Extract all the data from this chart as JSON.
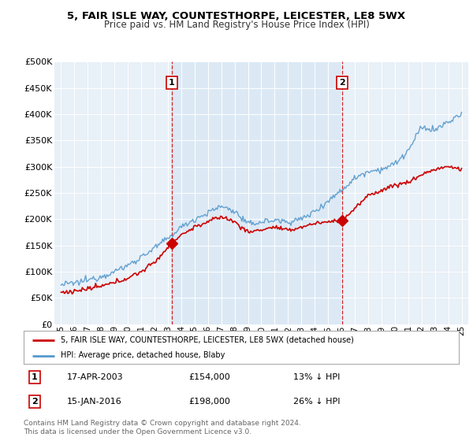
{
  "title": "5, FAIR ISLE WAY, COUNTESTHORPE, LEICESTER, LE8 5WX",
  "subtitle": "Price paid vs. HM Land Registry's House Price Index (HPI)",
  "ylabel_ticks": [
    "£0",
    "£50K",
    "£100K",
    "£150K",
    "£200K",
    "£250K",
    "£300K",
    "£350K",
    "£400K",
    "£450K",
    "£500K"
  ],
  "ytick_values": [
    0,
    50000,
    100000,
    150000,
    200000,
    250000,
    300000,
    350000,
    400000,
    450000,
    500000
  ],
  "ylim": [
    0,
    500000
  ],
  "xlim_start": 1994.5,
  "xlim_end": 2025.5,
  "marker1_x": 2003.29,
  "marker1_y": 154000,
  "marker2_x": 2016.04,
  "marker2_y": 198000,
  "marker1_date": "17-APR-2003",
  "marker1_price": "£154,000",
  "marker1_pct": "13% ↓ HPI",
  "marker2_date": "15-JAN-2016",
  "marker2_price": "£198,000",
  "marker2_pct": "26% ↓ HPI",
  "legend_line1": "5, FAIR ISLE WAY, COUNTESTHORPE, LEICESTER, LE8 5WX (detached house)",
  "legend_line2": "HPI: Average price, detached house, Blaby",
  "footer": "Contains HM Land Registry data © Crown copyright and database right 2024.\nThis data is licensed under the Open Government Licence v3.0.",
  "price_color": "#cc0000",
  "hpi_color": "#5599cc",
  "shade_color": "#ddeeff",
  "bg_color": "#f0f4ff",
  "grid_color": "#ccccdd",
  "xtick_labels": [
    "95",
    "96",
    "97",
    "98",
    "99",
    "00",
    "01",
    "02",
    "03",
    "04",
    "05",
    "06",
    "07",
    "08",
    "09",
    "10",
    "11",
    "12",
    "13",
    "14",
    "15",
    "16",
    "17",
    "18",
    "19",
    "20",
    "21",
    "22",
    "23",
    "24",
    "25"
  ],
  "xtick_values": [
    1995,
    1996,
    1997,
    1998,
    1999,
    2000,
    2001,
    2002,
    2003,
    2004,
    2005,
    2006,
    2007,
    2008,
    2009,
    2010,
    2011,
    2012,
    2013,
    2014,
    2015,
    2016,
    2017,
    2018,
    2019,
    2020,
    2021,
    2022,
    2023,
    2024,
    2025
  ]
}
